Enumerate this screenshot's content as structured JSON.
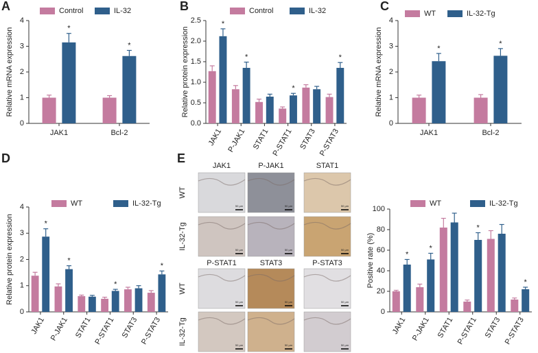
{
  "chart_data": [
    {
      "type": "bar",
      "panel_label": "A",
      "ylabel": "Relative mRNA expression",
      "categories": [
        "JAK1",
        "Bcl-2"
      ],
      "series": [
        {
          "name": "Control",
          "color": "#c47b9f",
          "values": [
            1.0,
            1.0
          ],
          "errors": [
            0.1,
            0.08
          ]
        },
        {
          "name": "IL-32",
          "color": "#2f5f8b",
          "values": [
            3.15,
            2.62
          ],
          "errors": [
            0.35,
            0.22
          ]
        }
      ],
      "ylim": [
        0,
        4
      ],
      "yticks": [
        0,
        1,
        2,
        3,
        4
      ],
      "annotations": [
        {
          "text": "*",
          "x": "JAK1",
          "series": "IL-32"
        },
        {
          "text": "*",
          "x": "Bcl-2",
          "series": "IL-32"
        }
      ]
    },
    {
      "type": "bar",
      "panel_label": "B",
      "ylabel": "Relative protein expression",
      "categories": [
        "JAK1",
        "P-JAK1",
        "STAT1",
        "P-STAT1",
        "STAT3",
        "P-STAT3"
      ],
      "series": [
        {
          "name": "Control",
          "color": "#c47b9f",
          "values": [
            1.27,
            0.83,
            0.52,
            0.36,
            0.87,
            0.64
          ],
          "errors": [
            0.13,
            0.09,
            0.07,
            0.04,
            0.07,
            0.07
          ]
        },
        {
          "name": "IL-32",
          "color": "#2f5f8b",
          "values": [
            2.12,
            1.35,
            0.65,
            0.68,
            0.83,
            1.35
          ],
          "errors": [
            0.18,
            0.14,
            0.06,
            0.05,
            0.07,
            0.13
          ]
        }
      ],
      "ylim": [
        0,
        2.5
      ],
      "yticks": [
        {
          "value": 0,
          "label": "0.0"
        },
        0.5,
        {
          "value": 1,
          "label": "1.0"
        },
        1.5,
        {
          "value": 2,
          "label": "2.0"
        },
        2.5
      ],
      "annotations": [
        {
          "text": "*",
          "x": "JAK1",
          "series": "IL-32"
        },
        {
          "text": "*",
          "x": "P-JAK1",
          "series": "IL-32"
        },
        {
          "text": "*",
          "x": "P-STAT1",
          "series": "IL-32"
        },
        {
          "text": "*",
          "x": "P-STAT3",
          "series": "IL-32"
        }
      ]
    },
    {
      "type": "bar",
      "panel_label": "C",
      "ylabel": "Relative mRNA expression",
      "categories": [
        "JAK1",
        "Bcl-2"
      ],
      "series": [
        {
          "name": "WT",
          "color": "#c47b9f",
          "values": [
            1.0,
            1.0
          ],
          "errors": [
            0.1,
            0.12
          ]
        },
        {
          "name": "IL-32-Tg",
          "color": "#2f5f8b",
          "values": [
            2.42,
            2.63
          ],
          "errors": [
            0.3,
            0.28
          ]
        }
      ],
      "ylim": [
        0,
        4
      ],
      "yticks": [
        0,
        1,
        2,
        3,
        4
      ],
      "annotations": [
        {
          "text": "*",
          "x": "JAK1",
          "series": "IL-32-Tg"
        },
        {
          "text": "*",
          "x": "Bcl-2",
          "series": "IL-32-Tg"
        }
      ]
    },
    {
      "type": "bar",
      "panel_label": "D",
      "ylabel": "Relative protein expression",
      "categories": [
        "JAK1",
        "P-JAK1",
        "STAT1",
        "P-STAT1",
        "STAT3",
        "P-STAT3"
      ],
      "series": [
        {
          "name": "WT",
          "color": "#c47b9f",
          "values": [
            1.38,
            0.97,
            0.6,
            0.5,
            0.86,
            0.73
          ],
          "errors": [
            0.13,
            0.1,
            0.04,
            0.06,
            0.08,
            0.08
          ]
        },
        {
          "name": "IL-32-Tg",
          "color": "#2f5f8b",
          "values": [
            2.87,
            1.63,
            0.58,
            0.8,
            0.9,
            1.43
          ],
          "errors": [
            0.3,
            0.13,
            0.05,
            0.06,
            0.1,
            0.13
          ]
        }
      ],
      "ylim": [
        0,
        4
      ],
      "yticks": [
        0,
        1,
        2,
        3,
        4
      ],
      "annotations": [
        {
          "text": "*",
          "x": "JAK1",
          "series": "IL-32-Tg"
        },
        {
          "text": "*",
          "x": "P-JAK1",
          "series": "IL-32-Tg"
        },
        {
          "text": "*",
          "x": "P-STAT1",
          "series": "IL-32-Tg"
        },
        {
          "text": "*",
          "x": "P-STAT3",
          "series": "IL-32-Tg"
        }
      ]
    },
    {
      "type": "bar",
      "ylabel": "Positive rate (%)",
      "categories": [
        "JAK1",
        "P-JAK1",
        "STAT1",
        "P-STAT1",
        "STAT3",
        "P-STAT3"
      ],
      "series": [
        {
          "name": "WT",
          "color": "#c47b9f",
          "values": [
            20,
            24,
            82,
            10,
            71,
            12
          ],
          "errors": [
            1,
            3,
            9,
            1.5,
            8,
            1.5
          ]
        },
        {
          "name": "IL-32-Tg",
          "color": "#2f5f8b",
          "values": [
            46,
            51,
            87,
            70,
            76,
            22
          ],
          "errors": [
            5,
            6,
            9,
            7,
            9,
            2
          ]
        }
      ],
      "ylim": [
        0,
        100
      ],
      "yticks": [
        0,
        20,
        40,
        60,
        80,
        100
      ],
      "annotations": [
        {
          "text": "*",
          "x": "JAK1",
          "series": "IL-32-Tg"
        },
        {
          "text": "*",
          "x": "P-JAK1",
          "series": "IL-32-Tg"
        },
        {
          "text": "*",
          "x": "P-STAT1",
          "series": "IL-32-Tg"
        },
        {
          "text": "*",
          "x": "P-STAT3",
          "series": "IL-32-Tg"
        }
      ]
    }
  ],
  "image_panel": {
    "panel_label": "E",
    "scale_bar": "50 μm",
    "blocks": [
      {
        "columns": [
          "JAK1",
          "P-JAK1",
          "STAT1"
        ],
        "rows": [
          "WT",
          "IL-32-Tg"
        ]
      },
      {
        "columns": [
          "P-STAT1",
          "STAT3",
          "P-STAT3"
        ],
        "rows": [
          "WT",
          "IL-32-Tg"
        ]
      }
    ]
  }
}
